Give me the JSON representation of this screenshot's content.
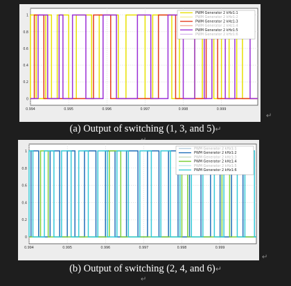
{
  "charts": [
    {
      "id": "a",
      "caption": "(a) Output of switching (1, 3, and 5)",
      "chart_data": {
        "type": "line",
        "title": "",
        "xlabel": "",
        "ylabel": "",
        "xlim": [
          0.994,
          0.99995
        ],
        "ylim": [
          -0.08,
          1.08
        ],
        "x_ticks": [
          "0.994",
          "0.995",
          "0.996",
          "0.997",
          "0.998",
          "0.999"
        ],
        "x_tick_values": [
          0.994,
          0.995,
          0.996,
          0.997,
          0.998,
          0.999
        ],
        "y_ticks": [
          "0",
          "0.2",
          "0.4",
          "0.6",
          "0.8",
          "1"
        ],
        "y_tick_values": [
          0,
          0.2,
          0.4,
          0.6,
          0.8,
          1
        ],
        "grid": true,
        "legend_position": "top-right",
        "series": [
          {
            "name": "PWM Generator 2 kHz1:1",
            "color": "#e8e000",
            "faded": false,
            "segments": [
              [
                0.994,
                0.99415
              ],
              [
                0.9944,
                0.99455
              ],
              [
                0.9947,
                0.995
              ],
              [
                0.9952,
                0.9956
              ],
              [
                0.9958,
                0.9963
              ],
              [
                0.9965,
                0.997
              ],
              [
                0.9972,
                0.9977
              ],
              [
                0.9979,
                0.9983
              ],
              [
                0.9985,
                0.9988
              ],
              [
                0.999,
                0.9992
              ],
              [
                0.9994,
                0.99955
              ]
            ]
          },
          {
            "name": "PWM Generator 2 kHz1:2",
            "color": "#f3ee9c",
            "faded": true,
            "segments": []
          },
          {
            "name": "PWM Generator 2 kHz1:3",
            "color": "#e43a1c",
            "faded": false,
            "segments": [
              [
                0.9941,
                0.99435
              ],
              [
                0.99565,
                0.9961
              ],
              [
                0.99735,
                0.9978
              ],
              [
                0.9986,
                0.9989
              ]
            ]
          },
          {
            "name": "PWM Generator 2 kHz1:4",
            "color": "#f2b0a4",
            "faded": true,
            "segments": []
          },
          {
            "name": "PWM Generator 2 kHz1:5",
            "color": "#9b2fd6",
            "faded": false,
            "segments": [
              [
                0.9942,
                0.99445
              ],
              [
                0.99475,
                0.99485
              ],
              [
                0.9951,
                0.99545
              ],
              [
                0.9959,
                0.99625
              ],
              [
                0.9968,
                0.99715
              ],
              [
                0.9976,
                0.998
              ],
              [
                0.9983,
                0.99855
              ],
              [
                0.99875,
                0.9991
              ],
              [
                0.99935,
                0.99975
              ]
            ]
          },
          {
            "name": "PWM Generator 2 kHz1:6",
            "color": "#d7b8ee",
            "faded": true,
            "segments": []
          }
        ]
      }
    },
    {
      "id": "b",
      "caption": "(b) Output of switching (2, 4, and 6)",
      "chart_data": {
        "type": "line",
        "title": "",
        "xlabel": "",
        "ylabel": "",
        "xlim": [
          0.994,
          0.99995
        ],
        "ylim": [
          -0.08,
          1.08
        ],
        "x_ticks": [
          "0.994",
          "0.995",
          "0.996",
          "0.997",
          "0.998",
          "0.999"
        ],
        "x_tick_values": [
          0.994,
          0.995,
          0.996,
          0.997,
          0.998,
          0.999
        ],
        "y_ticks": [
          "0",
          "0.2",
          "0.4",
          "0.6",
          "0.8",
          "1"
        ],
        "y_tick_values": [
          0,
          0.2,
          0.4,
          0.6,
          0.8,
          1
        ],
        "grid": true,
        "legend_position": "top-right",
        "series": [
          {
            "name": "PWM Generator 2 kHz1:1",
            "color": "#b8cfe0",
            "faded": true,
            "segments": []
          },
          {
            "name": "PWM Generator 2 kHz1:2",
            "color": "#1f6fb8",
            "faded": false,
            "segments": [
              [
                0.99405,
                0.99425
              ],
              [
                0.99455,
                0.9948
              ],
              [
                0.995,
                0.9952
              ],
              [
                0.99545,
                0.99575
              ],
              [
                0.996,
                0.99625
              ],
              [
                0.99655,
                0.99685
              ],
              [
                0.9971,
                0.9974
              ],
              [
                0.99765,
                0.9979
              ],
              [
                0.9982,
                0.9985
              ],
              [
                0.99875,
                0.999
              ],
              [
                0.9993,
                0.9996
              ]
            ]
          },
          {
            "name": "PWM Generator 2 kHz1:3",
            "color": "#c8dcc0",
            "faded": true,
            "segments": []
          },
          {
            "name": "PWM Generator 2 kHz1:4",
            "color": "#7fd13b",
            "faded": false,
            "segments": [
              [
                0.9943,
                0.9945
              ],
              [
                0.9961,
                0.9964
              ],
              [
                0.998,
                0.99815
              ],
              [
                0.99905,
                0.99925
              ]
            ]
          },
          {
            "name": "PWM Generator 2 kHz1:5",
            "color": "#bfe8ec",
            "faded": true,
            "segments": []
          },
          {
            "name": "PWM Generator 2 kHz1:6",
            "color": "#35c9d8",
            "faded": false,
            "segments": [
              [
                0.994,
                0.9941
              ],
              [
                0.9944,
                0.99465
              ],
              [
                0.99485,
                0.9951
              ],
              [
                0.9953,
                0.99555
              ],
              [
                0.9958,
                0.99605
              ],
              [
                0.9963,
                0.9966
              ],
              [
                0.9969,
                0.9972
              ],
              [
                0.99745,
                0.9977
              ],
              [
                0.99795,
                0.99825
              ],
              [
                0.99855,
                0.99885
              ],
              [
                0.9991,
                0.99945
              ],
              [
                0.99965,
                0.9999
              ]
            ]
          }
        ]
      }
    }
  ],
  "paragraph_mark": "↵"
}
